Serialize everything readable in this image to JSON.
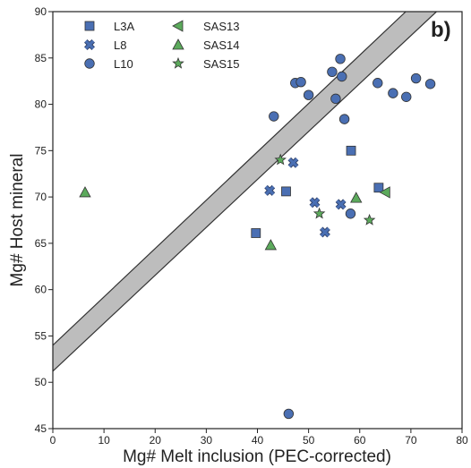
{
  "chart_data": {
    "type": "scatter",
    "panel_label": "b)",
    "xlabel": "Mg# Melt inclusion (PEC-corrected)",
    "ylabel": "Mg# Host mineral",
    "xlim": [
      0,
      80
    ],
    "ylim": [
      45,
      90
    ],
    "xticks": [
      "0",
      "10",
      "20",
      "30",
      "40",
      "50",
      "60",
      "70",
      "80"
    ],
    "yticks": [
      "45",
      "50",
      "55",
      "60",
      "65",
      "70",
      "75",
      "80",
      "85",
      "90"
    ],
    "grid": false,
    "legend_position": "top-left",
    "colors": {
      "blue": "#4a6fb3",
      "green": "#5caa5c",
      "band": "#bdbdbd"
    },
    "equilibrium_band": {
      "upper": [
        [
          0,
          54.0
        ],
        [
          69,
          90
        ]
      ],
      "lower": [
        [
          0,
          51.2
        ],
        [
          75,
          90
        ]
      ]
    },
    "series": [
      {
        "name": "L3A",
        "marker": "square",
        "color": "#4a6fb3",
        "points": [
          [
            39.7,
            66.1
          ],
          [
            45.6,
            70.6
          ],
          [
            58.3,
            75.0
          ],
          [
            63.7,
            71.0
          ]
        ]
      },
      {
        "name": "L8",
        "marker": "x",
        "color": "#4a6fb3",
        "points": [
          [
            42.4,
            70.7
          ],
          [
            47.0,
            73.7
          ],
          [
            51.2,
            69.4
          ],
          [
            53.2,
            66.2
          ],
          [
            56.3,
            69.2
          ]
        ]
      },
      {
        "name": "L10",
        "marker": "circle",
        "color": "#4a6fb3",
        "points": [
          [
            43.2,
            78.7
          ],
          [
            47.4,
            82.3
          ],
          [
            48.5,
            82.4
          ],
          [
            50.0,
            81.0
          ],
          [
            54.6,
            83.5
          ],
          [
            55.3,
            80.6
          ],
          [
            56.2,
            84.9
          ],
          [
            56.5,
            83.0
          ],
          [
            57.0,
            78.4
          ],
          [
            58.2,
            68.2
          ],
          [
            63.5,
            82.3
          ],
          [
            66.5,
            81.2
          ],
          [
            69.1,
            80.8
          ],
          [
            71.0,
            82.8
          ],
          [
            73.8,
            82.2
          ],
          [
            46.1,
            46.6
          ]
        ]
      },
      {
        "name": "SAS13",
        "marker": "triangle-left",
        "color": "#5caa5c",
        "points": [
          [
            65.0,
            70.5
          ]
        ]
      },
      {
        "name": "SAS14",
        "marker": "triangle-up",
        "color": "#5caa5c",
        "points": [
          [
            6.3,
            70.5
          ],
          [
            42.6,
            64.8
          ],
          [
            59.3,
            69.9
          ]
        ]
      },
      {
        "name": "SAS15",
        "marker": "star",
        "color": "#5caa5c",
        "points": [
          [
            44.5,
            74.0
          ],
          [
            52.1,
            68.2
          ],
          [
            61.9,
            67.5
          ]
        ]
      }
    ]
  }
}
